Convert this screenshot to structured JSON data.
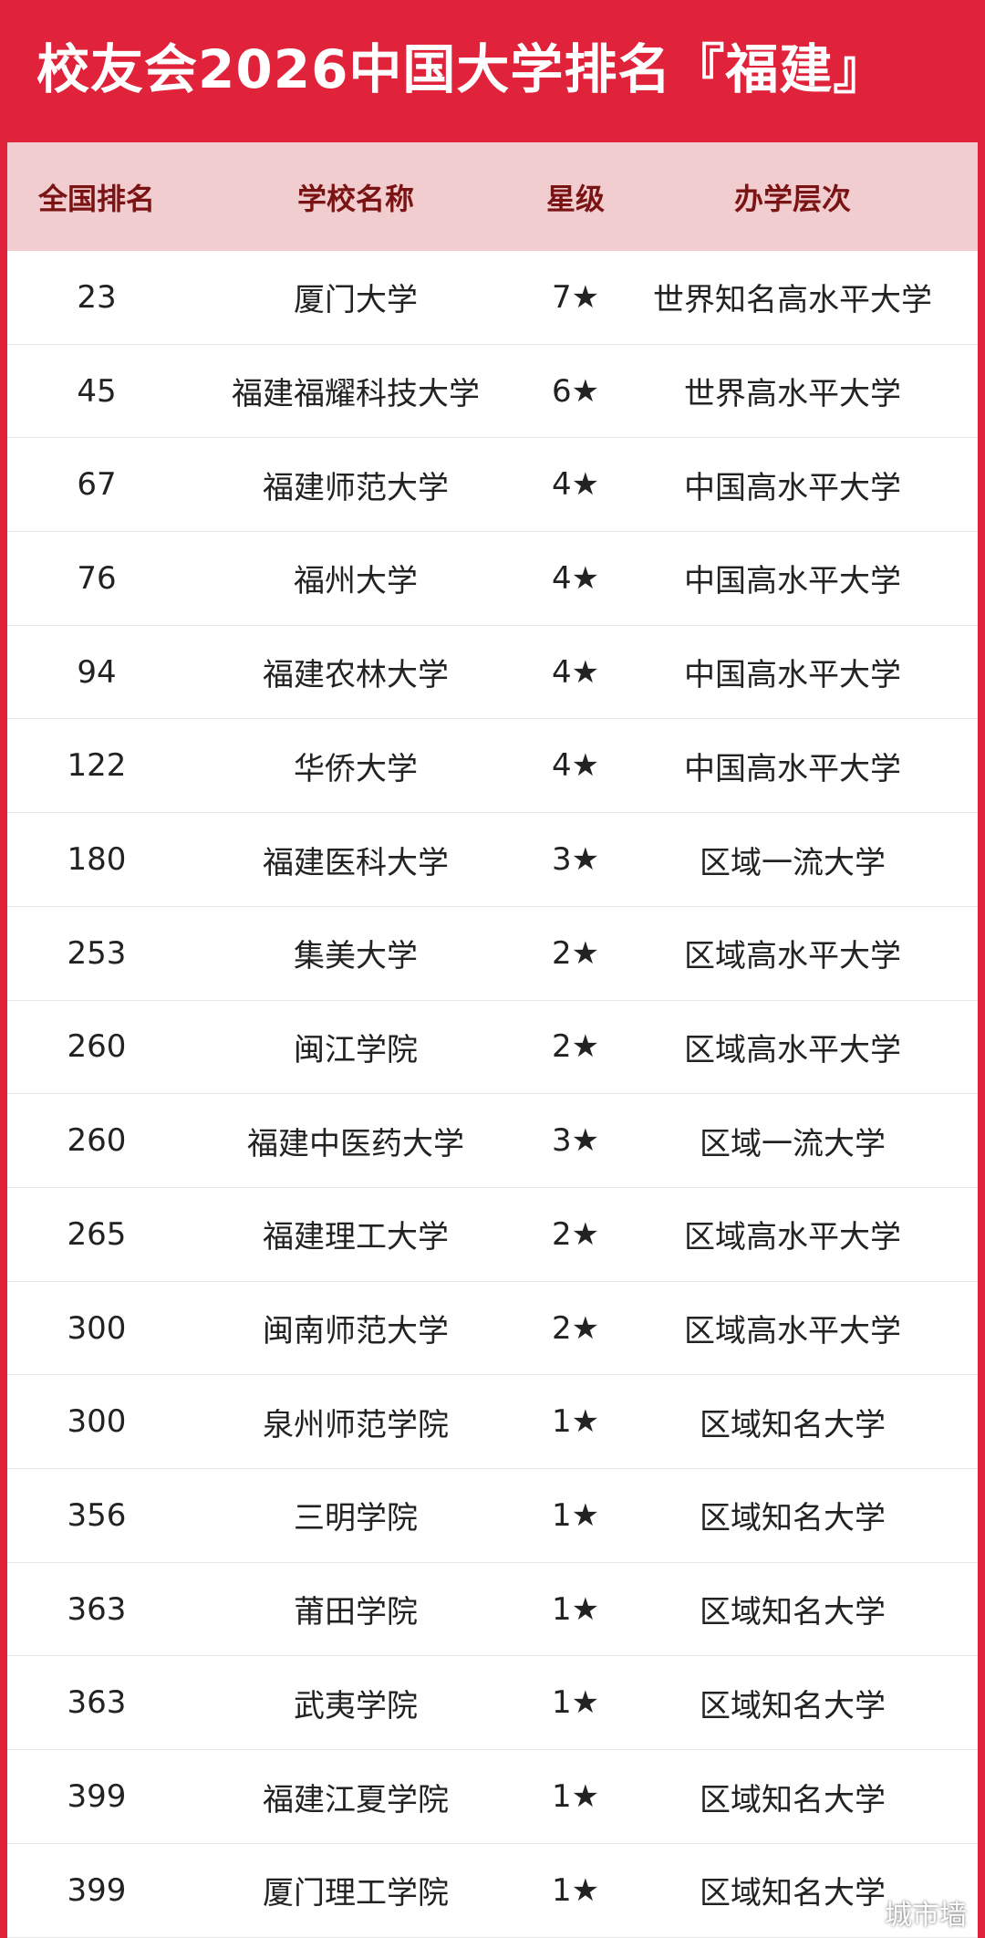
{
  "header": {
    "title": "校友会2026中国大学排名『福建』"
  },
  "table": {
    "columns": [
      "全国排名",
      "学校名称",
      "星级",
      "办学层次"
    ],
    "rows": [
      [
        23,
        "厦门大学",
        "7★",
        "世界知名高水平大学"
      ],
      [
        45,
        "福建福耀科技大学",
        "6★",
        "世界高水平大学"
      ],
      [
        67,
        "福建师范大学",
        "4★",
        "中国高水平大学"
      ],
      [
        76,
        "福州大学",
        "4★",
        "中国高水平大学"
      ],
      [
        94,
        "福建农林大学",
        "4★",
        "中国高水平大学"
      ],
      [
        122,
        "华侨大学",
        "4★",
        "中国高水平大学"
      ],
      [
        180,
        "福建医科大学",
        "3★",
        "区域一流大学"
      ],
      [
        253,
        "集美大学",
        "2★",
        "区域高水平大学"
      ],
      [
        260,
        "闽江学院",
        "2★",
        "区域高水平大学"
      ],
      [
        260,
        "福建中医药大学",
        "3★",
        "区域一流大学"
      ],
      [
        265,
        "福建理工大学",
        "2★",
        "区域高水平大学"
      ],
      [
        300,
        "闽南师范大学",
        "2★",
        "区域高水平大学"
      ],
      [
        300,
        "泉州师范学院",
        "1★",
        "区域知名大学"
      ],
      [
        356,
        "三明学院",
        "1★",
        "区域知名大学"
      ],
      [
        363,
        "莆田学院",
        "1★",
        "区域知名大学"
      ],
      [
        363,
        "武夷学院",
        "1★",
        "区域知名大学"
      ],
      [
        399,
        "福建江夏学院",
        "1★",
        "区域知名大学"
      ],
      [
        399,
        "厦门理工学院",
        "1★",
        "区域知名大学"
      ]
    ]
  },
  "watermark": "城市墙"
}
